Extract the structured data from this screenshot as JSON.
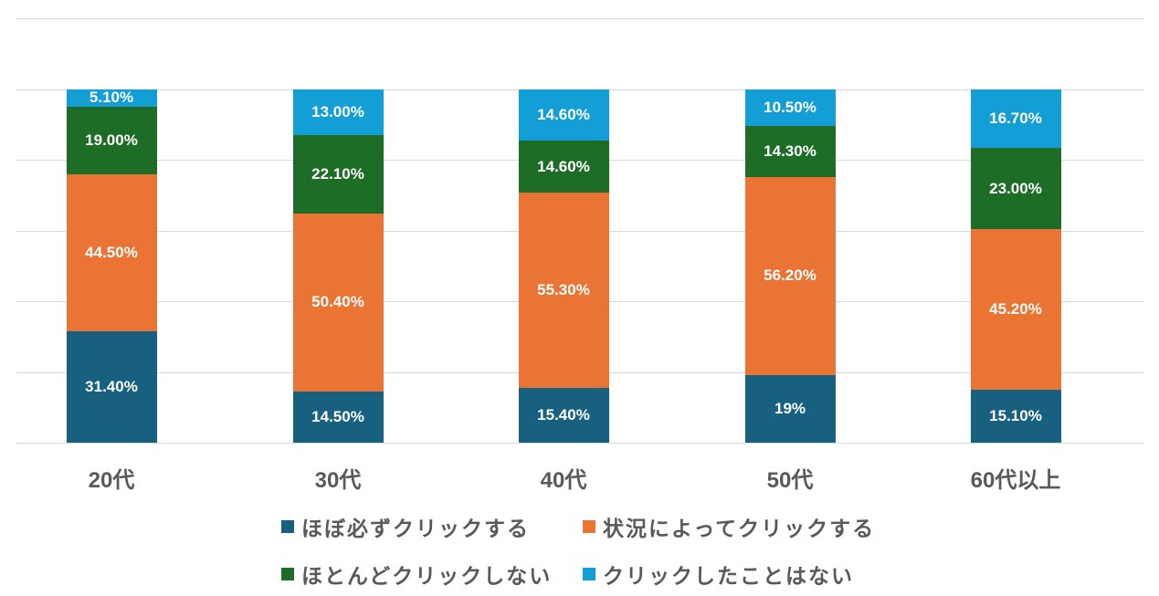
{
  "chart_data": {
    "type": "bar",
    "stacked": true,
    "title": "",
    "xlabel": "",
    "ylabel": "",
    "ylim": [
      0,
      120
    ],
    "grid": true,
    "gridlines": [
      0,
      20,
      40,
      60,
      80,
      100,
      120
    ],
    "legend_position": "bottom",
    "categories": [
      "20代",
      "30代",
      "40代",
      "50代",
      "60代以上"
    ],
    "series": [
      {
        "name": "ほぼ必ずクリックする",
        "color": "#17607f",
        "values": [
          31.4,
          14.5,
          15.4,
          19.0,
          15.1
        ],
        "labels": [
          "31.40%",
          "14.50%",
          "15.40%",
          "19%",
          "15.10%"
        ]
      },
      {
        "name": "状況によってクリックする",
        "color": "#e97433",
        "values": [
          44.5,
          50.4,
          55.3,
          56.2,
          45.2
        ],
        "labels": [
          "44.50%",
          "50.40%",
          "55.30%",
          "56.20%",
          "45.20%"
        ]
      },
      {
        "name": "ほとんどクリックしない",
        "color": "#1e6d26",
        "values": [
          19.0,
          22.1,
          14.6,
          14.3,
          23.0
        ],
        "labels": [
          "19.00%",
          "22.10%",
          "14.60%",
          "14.30%",
          "23.00%"
        ]
      },
      {
        "name": "クリックしたことはない",
        "color": "#139ed5",
        "values": [
          5.1,
          13.0,
          14.6,
          10.5,
          16.7
        ],
        "labels": [
          "5.10%",
          "13.00%",
          "14.60%",
          "10.50%",
          "16.70%"
        ]
      }
    ]
  },
  "legend": {
    "items": [
      {
        "label": "ほぼ必ずクリックする",
        "color": "#17607f"
      },
      {
        "label": "状況によってクリックする",
        "color": "#e97433"
      },
      {
        "label": "ほとんどクリックしない",
        "color": "#1e6d26"
      },
      {
        "label": "クリックしたことはない",
        "color": "#139ed5"
      }
    ]
  }
}
